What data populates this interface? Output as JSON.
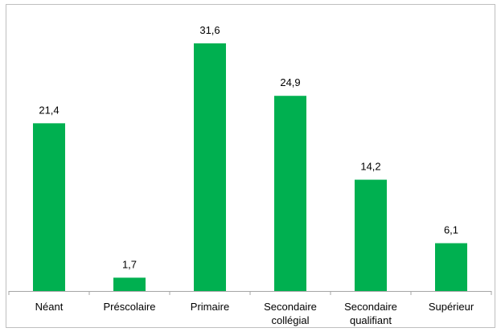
{
  "chart_data": {
    "type": "bar",
    "categories": [
      [
        "Néant"
      ],
      [
        "Préscolaire"
      ],
      [
        "Primaire"
      ],
      [
        "Secondaire",
        "collégial"
      ],
      [
        "Secondaire",
        "qualifiant"
      ],
      [
        "Supérieur"
      ]
    ],
    "values": [
      21.4,
      1.7,
      31.6,
      24.9,
      14.2,
      6.1
    ],
    "value_labels": [
      "21,4",
      "1,7",
      "31,6",
      "24,9",
      "14,2",
      "6,1"
    ],
    "title": "",
    "xlabel": "",
    "ylabel": "",
    "ylim": [
      0,
      35
    ],
    "grid": false,
    "legend": "none",
    "bar_color": "#00b050",
    "axis_color": "#a6a6a6"
  }
}
